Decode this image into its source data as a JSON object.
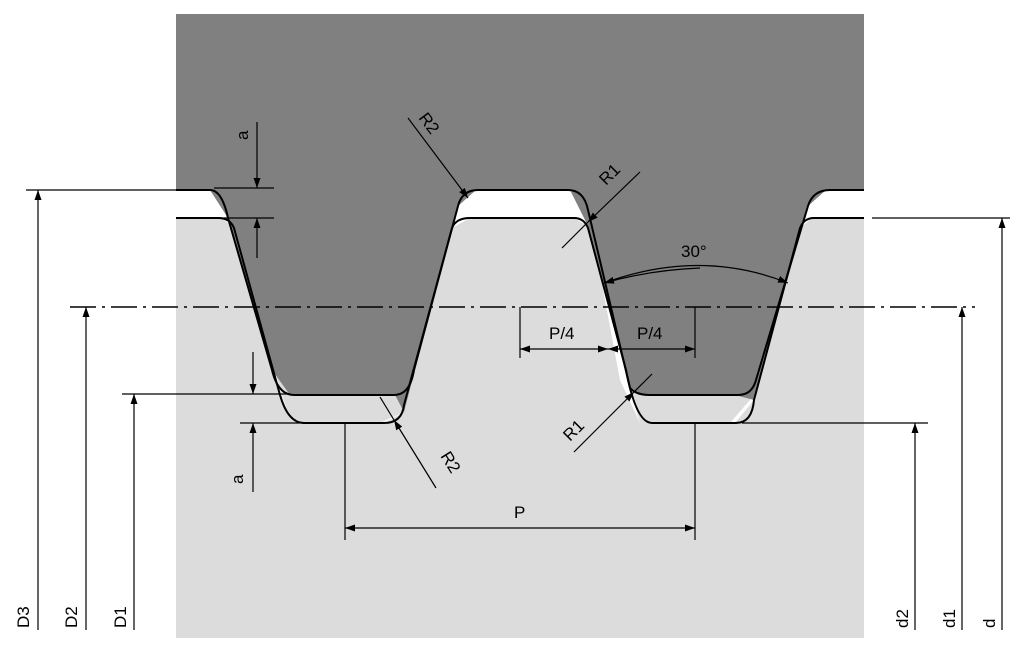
{
  "labels": {
    "D3": "D3",
    "D2": "D2",
    "D1": "D1",
    "d2": "d2",
    "d1": "d1",
    "d": "d",
    "a_top": "a",
    "a_bottom": "a",
    "R2_top": "R2",
    "R2_bottom": "R2",
    "R1_top": "R1",
    "R1_bottom": "R1",
    "angle": "30°",
    "P4_left": "P/4",
    "P4_right": "P/4",
    "P": "P"
  },
  "colors": {
    "nut": "#808080",
    "screw": "#dcdcdc",
    "clearance": "#ffffff",
    "line": "#000000"
  }
}
